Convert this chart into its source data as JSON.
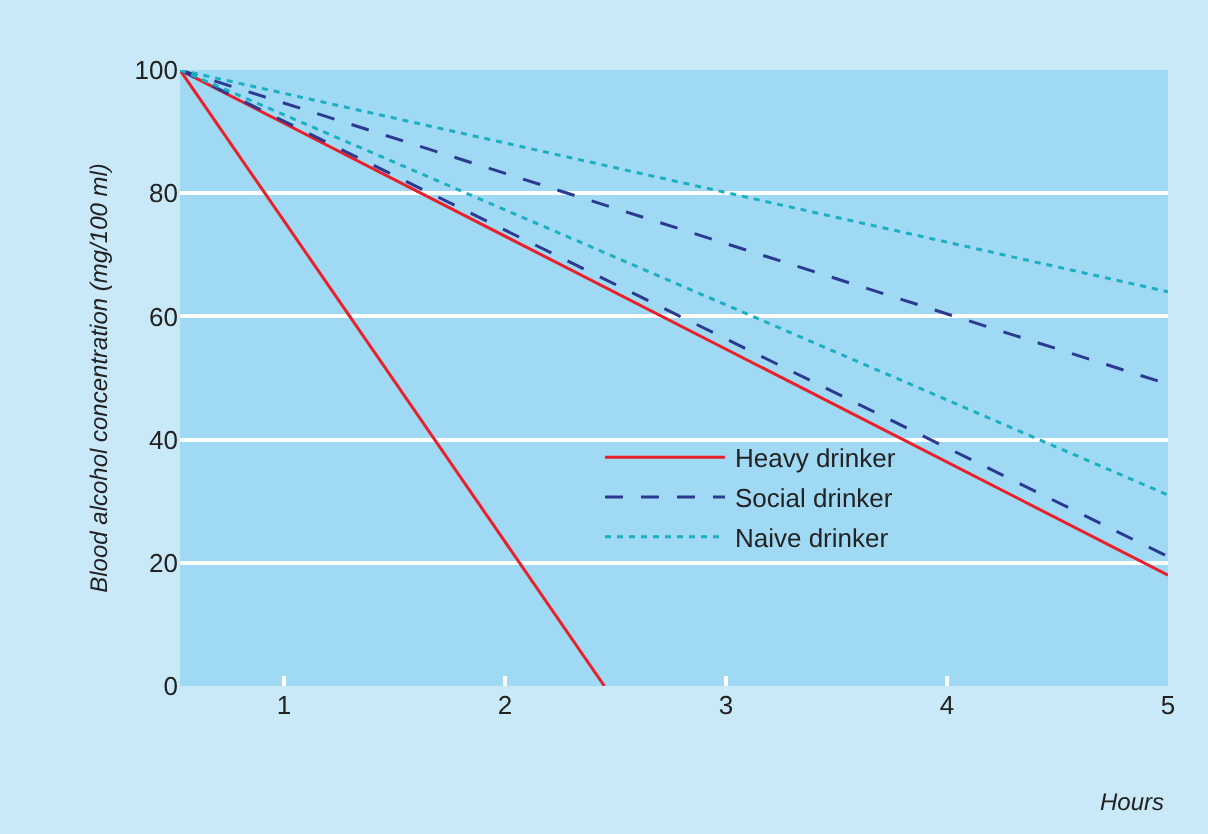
{
  "chart_data": {
    "type": "line",
    "xlabel": "Hours",
    "ylabel": "Blood alcohol concentration (mg/100 ml)",
    "xlim": [
      0.53,
      5
    ],
    "xticks": [
      1,
      2,
      3,
      4,
      5
    ],
    "ylim": [
      0,
      100
    ],
    "yticks": [
      0,
      20,
      40,
      60,
      80,
      100
    ],
    "grid": "y",
    "legend": "center",
    "marker": "none",
    "series": [
      {
        "name": "Heavy drinker",
        "color": "#e8202a",
        "line_style": "solid",
        "x": [
          0.53,
          2.45
        ],
        "values": [
          100,
          0
        ]
      },
      {
        "color": "#e8202a",
        "line_style": "solid",
        "x": [
          0.53,
          5
        ],
        "values": [
          100,
          18
        ]
      },
      {
        "name": "Social drinker",
        "color": "#2b3990",
        "line_style": "dashed",
        "x": [
          0.53,
          5
        ],
        "values": [
          100,
          49
        ]
      },
      {
        "color": "#2b3990",
        "line_style": "dashed",
        "x": [
          0.53,
          5
        ],
        "values": [
          100,
          21
        ]
      },
      {
        "name": "Naive drinker",
        "color": "#1ab0c0",
        "line_style": "dotted",
        "x": [
          0.53,
          5
        ],
        "values": [
          100,
          64
        ]
      },
      {
        "color": "#1ab0c0",
        "line_style": "dotted",
        "x": [
          0.53,
          5
        ],
        "values": [
          100,
          31
        ]
      }
    ]
  }
}
